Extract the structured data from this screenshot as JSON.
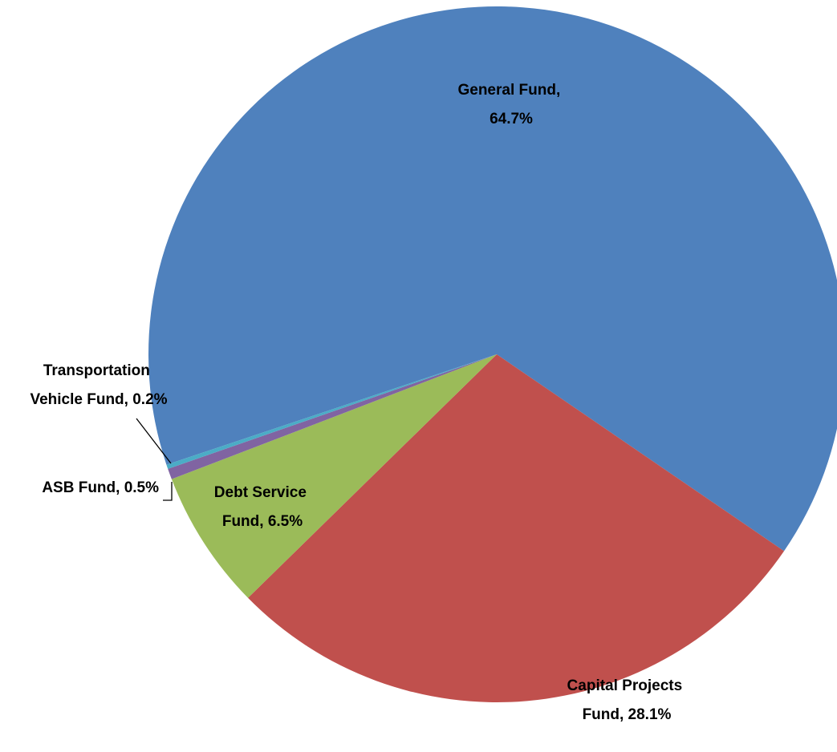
{
  "chart_data": {
    "type": "pie",
    "values": [
      64.7,
      28.1,
      6.5,
      0.5,
      0.2
    ],
    "value_labels": [
      "General Fund, 64.7%",
      "Capital Projects Fund, 28.1%",
      "Debt Service Fund, 6.5%",
      "ASB Fund, 0.5%",
      "Transportation Vehicle Fund, 0.2%"
    ],
    "colors": [
      "#4f81bd",
      "#c0504d",
      "#9bbb59",
      "#8064a2",
      "#4bacc6"
    ]
  }
}
